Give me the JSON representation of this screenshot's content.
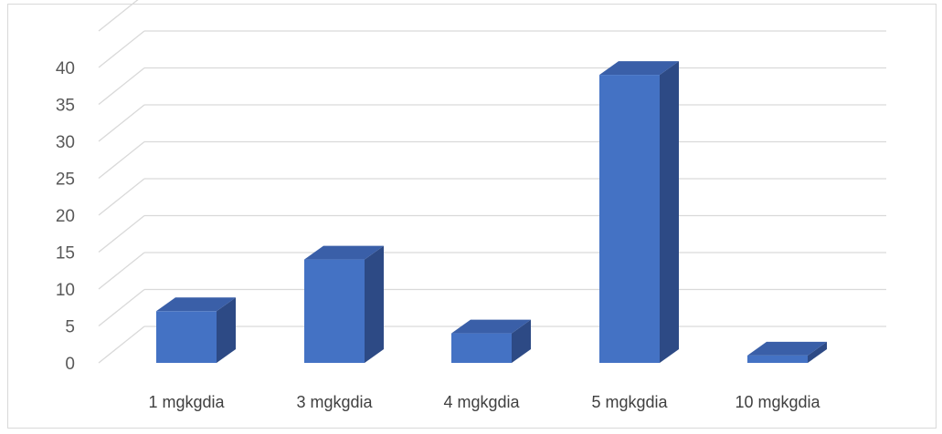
{
  "chart_data": {
    "type": "bar",
    "title": "",
    "xlabel": "",
    "ylabel": "",
    "categories": [
      "1 mgkgdia",
      "3 mgkgdia",
      "4 mgkgdia",
      "5 mgkgdia",
      "10 mgkgdia"
    ],
    "values": [
      7,
      14,
      4,
      39,
      1
    ],
    "ylim": [
      0,
      40
    ],
    "yticks": [
      "0",
      "5",
      "10",
      "15",
      "20",
      "25",
      "30",
      "35",
      "40"
    ],
    "grid": true,
    "legend": "none",
    "style": "3d-clustered-column",
    "colors": {
      "front": "#4472c4",
      "top": "#3a5fa8",
      "side": "#2d4a85",
      "grid": "#d9d9d9"
    }
  }
}
